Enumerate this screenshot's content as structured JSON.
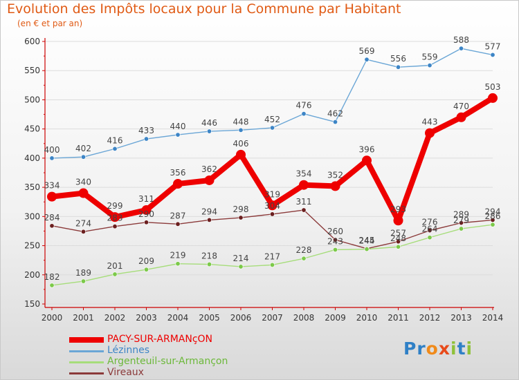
{
  "header": {
    "title": "Evolution des Impôts locaux pour la Commune par Habitant",
    "subtitle": "(en € et par an)"
  },
  "brand": {
    "name": "Proxiti",
    "letters": [
      "P",
      "r",
      "o",
      "x",
      "i",
      "t",
      "i"
    ],
    "letter_colors": [
      "#2f80c6",
      "#2f80c6",
      "#f08a1a",
      "#e84a1a",
      "#8fc13a",
      "#2f80c6",
      "#8fc13a"
    ]
  },
  "colors": {
    "title": "#e05a14",
    "axis": "#cc0000",
    "grid": "#dcdcdc"
  },
  "chart_data": {
    "type": "line",
    "title": "Evolution des Impôts locaux pour la Commune par Habitant",
    "subtitle": "(en € et par an)",
    "xlabel": "",
    "ylabel": "",
    "x": [
      "2000",
      "2001",
      "2002",
      "2003",
      "2004",
      "2005",
      "2006",
      "2007",
      "2008",
      "2009",
      "2010",
      "2011",
      "2012",
      "2013",
      "2014"
    ],
    "ylim": [
      150,
      600
    ],
    "yticks": [
      150,
      200,
      250,
      300,
      350,
      400,
      450,
      500,
      550,
      600
    ],
    "grid": true,
    "legend_position": "bottom-left",
    "series": [
      {
        "name": "PACY-SUR-ARMANçON",
        "color": "#ee0000",
        "line_width": 8,
        "marker_radius": 7,
        "values": [
          334,
          340,
          299,
          311,
          356,
          362,
          406,
          319,
          354,
          352,
          396,
          293,
          443,
          470,
          503
        ],
        "labels": [
          "334",
          "340",
          "299",
          "311",
          "356",
          "362",
          "406",
          "319",
          "354",
          "352",
          "396",
          "293",
          "443",
          "470",
          "503"
        ]
      },
      {
        "name": "Lézinnes",
        "color": "#6aa6d6",
        "line_width": 1.4,
        "marker_radius": 3.2,
        "marker_color": "#3d85c6",
        "values": [
          400,
          402,
          416,
          433,
          440,
          446,
          448,
          452,
          476,
          462,
          569,
          556,
          559,
          588,
          577
        ],
        "labels": [
          "400",
          "402",
          "416",
          "433",
          "440",
          "446",
          "448",
          "452",
          "476",
          "462",
          "569",
          "556",
          "559",
          "588",
          "577"
        ]
      },
      {
        "name": "Argenteuil-sur-Armançon",
        "color": "#a6dd7a",
        "line_width": 1.4,
        "marker_radius": 3.2,
        "marker_color": "#7cc94a",
        "values": [
          182,
          189,
          201,
          209,
          219,
          218,
          214,
          217,
          228,
          243,
          244,
          248,
          264,
          279,
          286
        ],
        "labels": [
          "182",
          "189",
          "201",
          "209",
          "219",
          "218",
          "214",
          "217",
          "228",
          "243",
          "244",
          "248",
          "264",
          "279",
          "286"
        ]
      },
      {
        "name": "Vireaux",
        "color": "#8b3a3a",
        "line_width": 1.4,
        "marker_radius": 3.2,
        "marker_color": "#6b1f1f",
        "values": [
          284,
          274,
          283,
          290,
          287,
          294,
          298,
          304,
          311,
          260,
          245,
          257,
          276,
          289,
          294
        ],
        "labels": [
          "284",
          "274",
          "283",
          "290",
          "287",
          "294",
          "298",
          "304",
          "311",
          "260",
          "245",
          "257",
          "276",
          "289",
          "294"
        ]
      }
    ]
  }
}
